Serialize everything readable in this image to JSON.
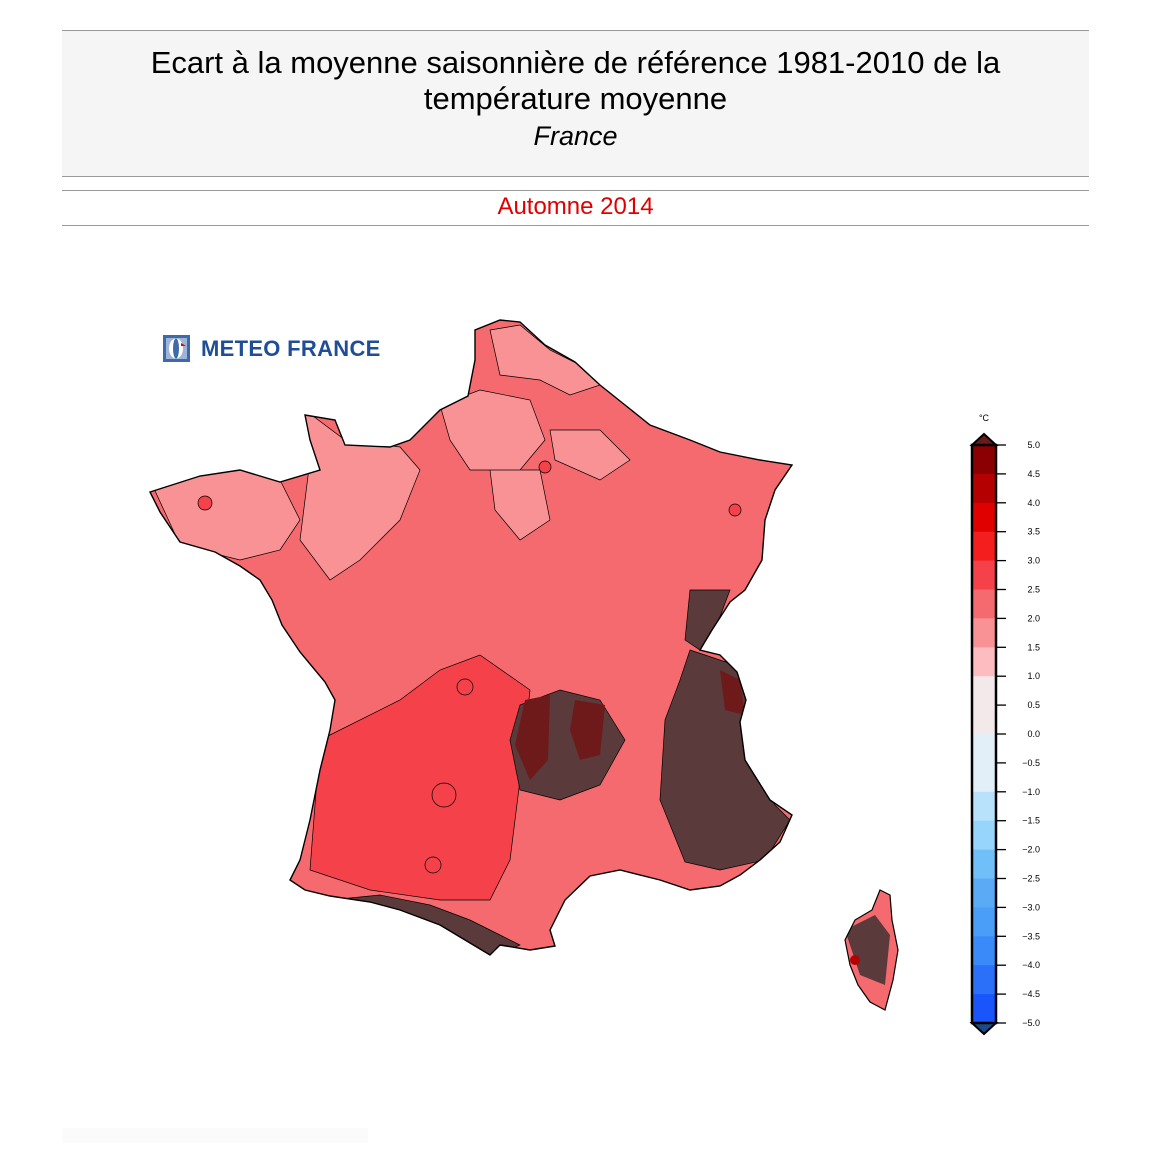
{
  "header": {
    "title_line1": "Ecart à la moyenne saisonnière de référence 1981-2010 de la",
    "title_line2": "température moyenne",
    "region": "France"
  },
  "season": "Automne 2014",
  "logo": {
    "text": "METEO FRANCE",
    "icon": "meteo-france-globe-icon",
    "color": "#1f4e96"
  },
  "colorbar": {
    "unit": "°C",
    "ticks": [
      "5.0",
      "4.5",
      "4.0",
      "3.5",
      "3.0",
      "2.5",
      "2.0",
      "1.5",
      "1.0",
      "0.5",
      "0.0",
      "−0.5",
      "−1.0",
      "−1.5",
      "−2.0",
      "−2.5",
      "−3.0",
      "−3.5",
      "−4.0",
      "−4.5",
      "−5.0"
    ],
    "range": [
      -5.0,
      5.0
    ],
    "colors": [
      "#8b0000",
      "#b40000",
      "#e00000",
      "#f41e1e",
      "#f5414a",
      "#f56a6e",
      "#f99295",
      "#fdbcc0",
      "#f3e8ea",
      "#f3e8ea",
      "#e2eef8",
      "#e2eef8",
      "#b8e2fb",
      "#97d5fc",
      "#70bff8",
      "#5aaaf5",
      "#4a9ef8",
      "#3a8afa",
      "#2a70f8",
      "#1955fb"
    ],
    "over_color": "#6b1a1a",
    "under_color": "#1a4a8a"
  },
  "map": {
    "dominant_anomaly_range": [
      2.0,
      2.5
    ],
    "colors": {
      "base": "#f56a6e",
      "light": "#f99295",
      "warm": "#f5414a",
      "hot": "#b40000",
      "mountain": "#5a3a3a",
      "outline": "#000000"
    }
  }
}
